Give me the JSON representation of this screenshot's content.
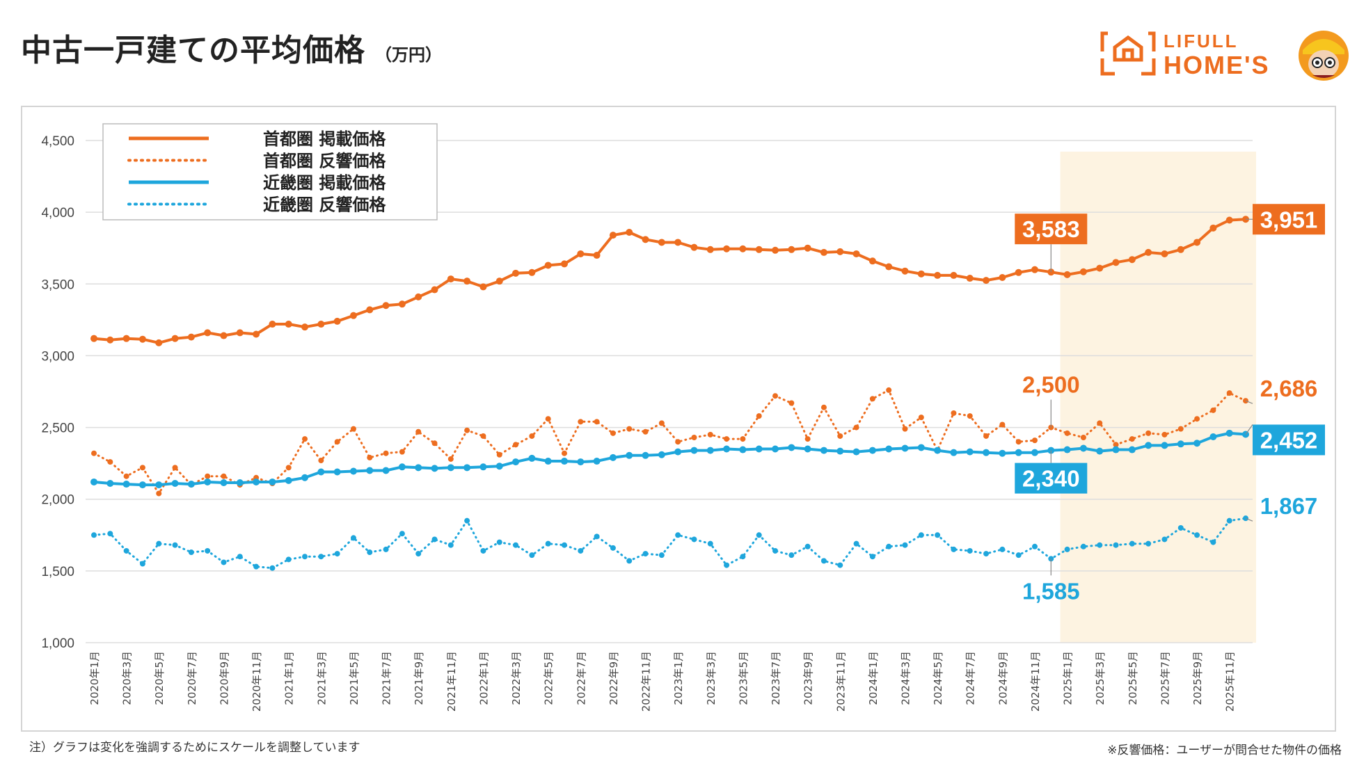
{
  "header": {
    "title": "中古一戸建ての平均価格",
    "unit": "（万円）"
  },
  "logo": {
    "line1": "LIFULL",
    "line2": "HOME'S",
    "color": "#ED6D1F"
  },
  "colors": {
    "orange": "#ED6D1F",
    "blue": "#1EA6DC",
    "highlight": "#FDF3E1",
    "grid": "#DDDDDD"
  },
  "notes": {
    "left": "注）グラフは変化を強調するためにスケールを調整しています",
    "right": "※反響価格：ユーザーが問合せた物件の価格"
  },
  "chart_data": {
    "type": "line",
    "title": "中古一戸建ての平均価格",
    "ylim": [
      1000,
      4500
    ],
    "yticks": [
      1000,
      1500,
      2000,
      2500,
      3000,
      3500,
      4000,
      4500
    ],
    "ytick_labels": [
      "1,000",
      "1,500",
      "2,000",
      "2,500",
      "3,000",
      "3,500",
      "4,000",
      "4,500"
    ],
    "grid": "horizontal",
    "legend_position": "top-left",
    "highlight_range": [
      "2025年1月",
      "2025年12月"
    ],
    "x": [
      "2020年1月",
      "2020年2月",
      "2020年3月",
      "2020年4月",
      "2020年5月",
      "2020年6月",
      "2020年7月",
      "2020年8月",
      "2020年9月",
      "2020年10月",
      "2020年11月",
      "2020年12月",
      "2021年1月",
      "2021年2月",
      "2021年3月",
      "2021年4月",
      "2021年5月",
      "2021年6月",
      "2021年7月",
      "2021年8月",
      "2021年9月",
      "2021年10月",
      "2021年11月",
      "2021年12月",
      "2022年1月",
      "2022年2月",
      "2022年3月",
      "2022年4月",
      "2022年5月",
      "2022年6月",
      "2022年7月",
      "2022年8月",
      "2022年9月",
      "2022年10月",
      "2022年11月",
      "2022年12月",
      "2023年1月",
      "2023年2月",
      "2023年3月",
      "2023年4月",
      "2023年5月",
      "2023年6月",
      "2023年7月",
      "2023年8月",
      "2023年9月",
      "2023年10月",
      "2023年11月",
      "2023年12月",
      "2024年1月",
      "2024年2月",
      "2024年3月",
      "2024年4月",
      "2024年5月",
      "2024年6月",
      "2024年7月",
      "2024年8月",
      "2024年9月",
      "2024年10月",
      "2024年11月",
      "2024年12月",
      "2025年1月",
      "2025年2月",
      "2025年3月",
      "2025年4月",
      "2025年5月",
      "2025年6月",
      "2025年7月",
      "2025年8月",
      "2025年9月",
      "2025年10月",
      "2025年11月",
      "2025年12月"
    ],
    "xtick_labels": [
      "2020年1月",
      "2020年3月",
      "2020年5月",
      "2020年7月",
      "2020年9月",
      "2020年11月",
      "2021年1月",
      "2021年3月",
      "2021年5月",
      "2021年7月",
      "2021年9月",
      "2021年11月",
      "2022年1月",
      "2022年3月",
      "2022年5月",
      "2022年7月",
      "2022年9月",
      "2022年11月",
      "2023年1月",
      "2023年3月",
      "2023年5月",
      "2023年7月",
      "2023年9月",
      "2023年11月",
      "2024年1月",
      "2024年3月",
      "2024年5月",
      "2024年7月",
      "2024年9月",
      "2024年11月",
      "2025年1月",
      "2025年3月",
      "2025年5月",
      "2025年7月",
      "2025年9月",
      "2025年11月"
    ],
    "series": [
      {
        "name": "首都圏 掲載価格",
        "color": "#ED6D1F",
        "style": "solid",
        "values": [
          3120,
          3110,
          3120,
          3115,
          3090,
          3120,
          3130,
          3160,
          3140,
          3160,
          3150,
          3220,
          3220,
          3200,
          3220,
          3240,
          3280,
          3320,
          3350,
          3360,
          3410,
          3460,
          3535,
          3520,
          3480,
          3520,
          3575,
          3580,
          3630,
          3640,
          3710,
          3700,
          3840,
          3860,
          3810,
          3790,
          3790,
          3755,
          3740,
          3745,
          3745,
          3740,
          3735,
          3740,
          3750,
          3720,
          3725,
          3710,
          3660,
          3620,
          3590,
          3570,
          3560,
          3560,
          3540,
          3525,
          3545,
          3580,
          3600,
          3583,
          3565,
          3585,
          3610,
          3650,
          3670,
          3720,
          3710,
          3740,
          3790,
          3890,
          3945,
          3951
        ]
      },
      {
        "name": "首都圏 反響価格",
        "color": "#ED6D1F",
        "style": "dotted",
        "values": [
          2320,
          2260,
          2160,
          2220,
          2040,
          2220,
          2100,
          2160,
          2160,
          2100,
          2150,
          2110,
          2220,
          2420,
          2270,
          2400,
          2490,
          2290,
          2320,
          2330,
          2470,
          2390,
          2280,
          2480,
          2440,
          2310,
          2380,
          2440,
          2560,
          2320,
          2540,
          2540,
          2460,
          2490,
          2470,
          2530,
          2400,
          2430,
          2450,
          2420,
          2420,
          2580,
          2720,
          2670,
          2420,
          2640,
          2440,
          2500,
          2700,
          2760,
          2490,
          2570,
          2340,
          2600,
          2580,
          2440,
          2520,
          2400,
          2410,
          2500,
          2460,
          2430,
          2530,
          2380,
          2420,
          2460,
          2450,
          2490,
          2560,
          2620,
          2740,
          2686
        ]
      },
      {
        "name": "近畿圏 掲載価格",
        "color": "#1EA6DC",
        "style": "solid",
        "values": [
          2120,
          2110,
          2105,
          2100,
          2100,
          2110,
          2105,
          2120,
          2115,
          2115,
          2120,
          2120,
          2130,
          2150,
          2190,
          2190,
          2195,
          2200,
          2200,
          2225,
          2220,
          2215,
          2220,
          2220,
          2225,
          2230,
          2260,
          2285,
          2265,
          2265,
          2260,
          2265,
          2290,
          2305,
          2305,
          2310,
          2330,
          2340,
          2340,
          2350,
          2345,
          2350,
          2350,
          2360,
          2350,
          2340,
          2335,
          2330,
          2340,
          2350,
          2355,
          2360,
          2340,
          2325,
          2330,
          2325,
          2320,
          2325,
          2325,
          2340,
          2345,
          2355,
          2335,
          2345,
          2345,
          2375,
          2375,
          2385,
          2390,
          2435,
          2460,
          2452
        ]
      },
      {
        "name": "近畿圏 反響価格",
        "color": "#1EA6DC",
        "style": "dotted",
        "values": [
          1750,
          1760,
          1640,
          1550,
          1690,
          1680,
          1630,
          1640,
          1560,
          1600,
          1530,
          1520,
          1580,
          1600,
          1600,
          1620,
          1730,
          1630,
          1650,
          1760,
          1620,
          1720,
          1680,
          1850,
          1640,
          1700,
          1680,
          1610,
          1690,
          1680,
          1640,
          1740,
          1660,
          1570,
          1620,
          1610,
          1750,
          1720,
          1690,
          1540,
          1600,
          1750,
          1640,
          1610,
          1670,
          1570,
          1540,
          1690,
          1600,
          1670,
          1680,
          1750,
          1750,
          1650,
          1640,
          1620,
          1650,
          1610,
          1670,
          1585,
          1650,
          1670,
          1680,
          1680,
          1690,
          1690,
          1720,
          1800,
          1750,
          1700,
          1850,
          1867
        ]
      }
    ],
    "callouts": [
      {
        "label": "3,583",
        "series": 0,
        "index": 59,
        "style": "box"
      },
      {
        "label": "3,951",
        "series": 0,
        "index": 71,
        "style": "box"
      },
      {
        "label": "2,500",
        "series": 1,
        "index": 59,
        "style": "text"
      },
      {
        "label": "2,686",
        "series": 1,
        "index": 71,
        "style": "text"
      },
      {
        "label": "2,340",
        "series": 2,
        "index": 59,
        "style": "box"
      },
      {
        "label": "2,452",
        "series": 2,
        "index": 71,
        "style": "box"
      },
      {
        "label": "1,585",
        "series": 3,
        "index": 59,
        "style": "text"
      },
      {
        "label": "1,867",
        "series": 3,
        "index": 71,
        "style": "text"
      }
    ]
  }
}
